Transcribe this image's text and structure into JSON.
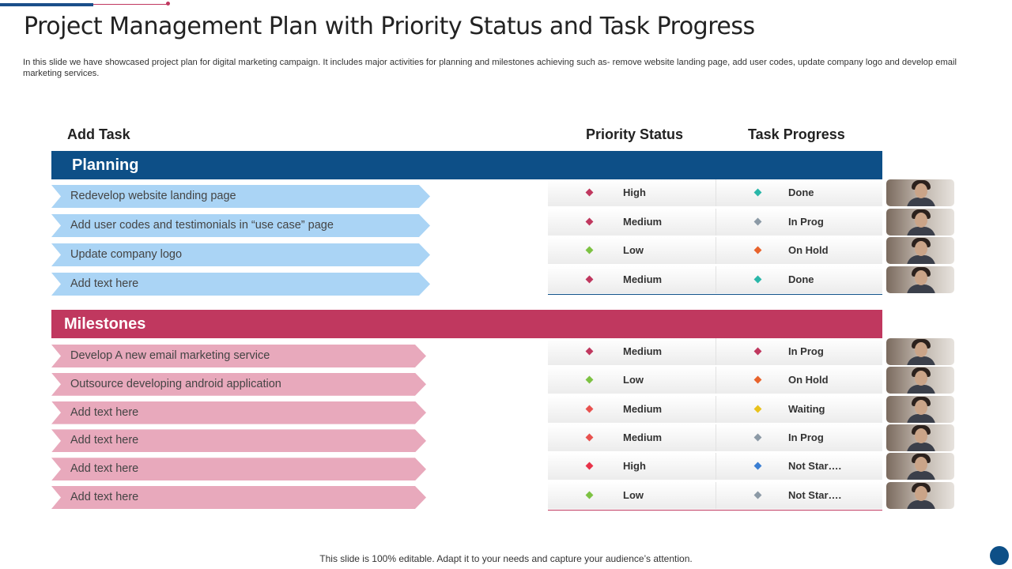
{
  "title": "Project Management Plan with Priority Status and Task Progress",
  "subtitle": "In this slide we have showcased project plan for digital marketing campaign. It includes major activities for planning and milestones achieving such as- remove website landing page, add user codes, update company logo and develop email marketing services.",
  "columns": {
    "add_task": "Add Task",
    "priority_status": "Priority Status",
    "task_progress": "Task Progress"
  },
  "colors": {
    "blue": "#0d4f87",
    "pink": "#c0385f",
    "high": "#c0385f",
    "medium": "#c0385f",
    "low": "#7dc243",
    "done": "#2ab7a9",
    "in_prog": "#8c9aa6",
    "on_hold": "#e8632c",
    "waiting": "#e9c21b",
    "not_started": "#3b7fd3"
  },
  "planning": {
    "label": "Planning",
    "tasks": [
      {
        "task": "Redevelop website landing page",
        "priority": "High",
        "priority_color": "#c0385f",
        "progress": "Done",
        "progress_color": "#2ab7a9"
      },
      {
        "task": "Add user codes and testimonials in “use case” page",
        "priority": "Medium",
        "priority_color": "#c0385f",
        "progress": "In Prog",
        "progress_color": "#8c9aa6"
      },
      {
        "task": "Update company logo",
        "priority": "Low",
        "priority_color": "#7dc243",
        "progress": "On Hold",
        "progress_color": "#e8632c"
      },
      {
        "task": "Add text here",
        "priority": "Medium",
        "priority_color": "#c0385f",
        "progress": "Done",
        "progress_color": "#2ab7a9"
      }
    ]
  },
  "milestones": {
    "label": "Milestones",
    "tasks": [
      {
        "task": "Develop A new email marketing service",
        "priority": "Medium",
        "priority_color": "#c0385f",
        "progress": "In Prog",
        "progress_color": "#c0385f"
      },
      {
        "task": "Outsource developing android application",
        "priority": "Low",
        "priority_color": "#7dc243",
        "progress": "On Hold",
        "progress_color": "#e8632c"
      },
      {
        "task": "Add text here",
        "priority": "Medium",
        "priority_color": "#e8524f",
        "progress": "Waiting",
        "progress_color": "#e9c21b"
      },
      {
        "task": "Add text here",
        "priority": "Medium",
        "priority_color": "#e8524f",
        "progress": "In Prog",
        "progress_color": "#8c9aa6"
      },
      {
        "task": "Add text here",
        "priority": "High",
        "priority_color": "#e8334a",
        "progress": "Not Star….",
        "progress_color": "#3b7fd3"
      },
      {
        "task": "Add text here",
        "priority": "Low",
        "priority_color": "#7dc243",
        "progress": "Not Star….",
        "progress_color": "#8c9aa6"
      }
    ]
  },
  "footer": "This slide is 100% editable. Adapt it to your needs and capture your audience’s attention."
}
